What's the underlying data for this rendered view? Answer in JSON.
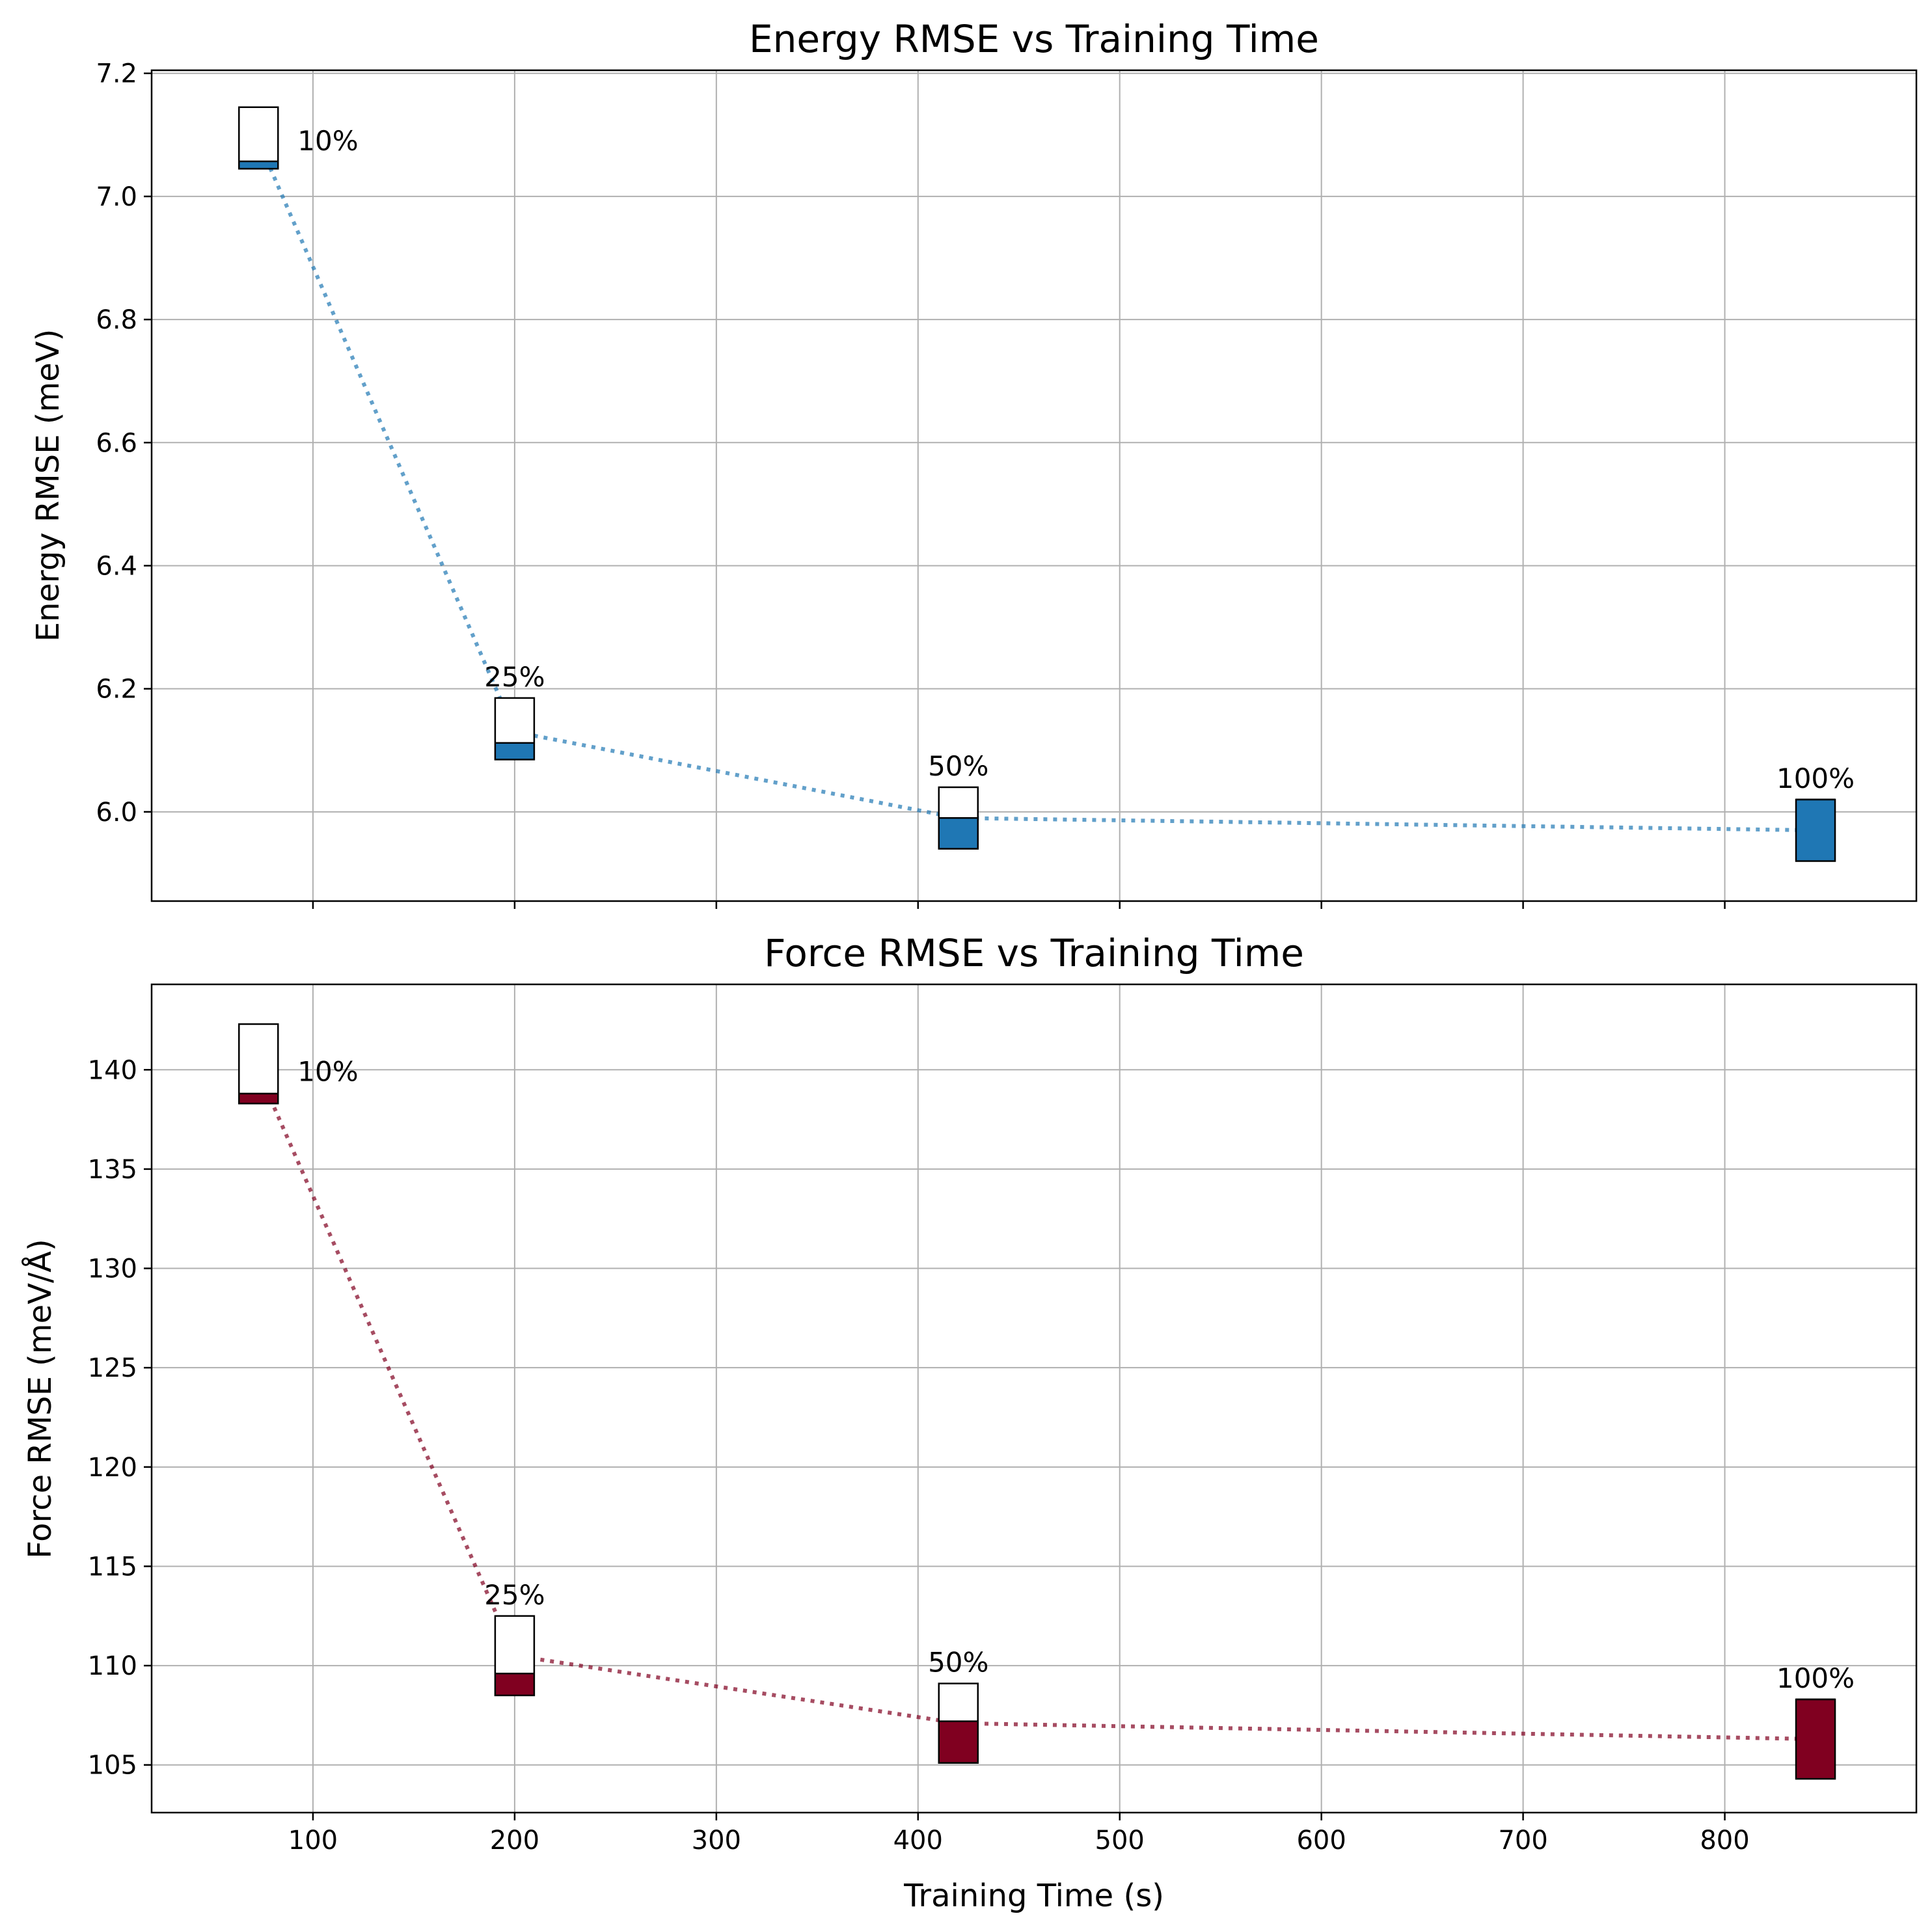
{
  "chart_data": [
    {
      "type": "scatter",
      "title": "Energy RMSE vs Training Time",
      "xlabel": "",
      "ylabel": "Energy RMSE (meV)",
      "xlim": [
        20,
        895
      ],
      "ylim": [
        5.855,
        7.205
      ],
      "xticks": [
        100,
        200,
        300,
        400,
        500,
        600,
        700,
        800
      ],
      "yticks": [
        6.0,
        6.2,
        6.4,
        6.6,
        6.8,
        7.0,
        7.2
      ],
      "ytick_labels": [
        "6.0",
        "6.2",
        "6.4",
        "6.6",
        "6.8",
        "7.0",
        "7.2"
      ],
      "show_xtick_labels": false,
      "grid": true,
      "color": "#1f77b4",
      "line_style": "dotted",
      "points": [
        {
          "x": 73,
          "y": 7.09,
          "label": "10%",
          "box_low": 7.045,
          "box_high": 7.145,
          "fill_top": 7.057,
          "label_pos": "right"
        },
        {
          "x": 200,
          "y": 6.13,
          "label": "25%",
          "box_low": 6.085,
          "box_high": 6.185,
          "fill_top": 6.112,
          "label_pos": "above"
        },
        {
          "x": 420,
          "y": 5.99,
          "label": "50%",
          "box_low": 5.94,
          "box_high": 6.04,
          "fill_top": 5.99,
          "label_pos": "above"
        },
        {
          "x": 845,
          "y": 5.97,
          "label": "100%",
          "box_low": 5.92,
          "box_high": 6.02,
          "fill_top": 6.02,
          "label_pos": "above"
        }
      ]
    },
    {
      "type": "scatter",
      "title": "Force RMSE vs Training Time",
      "xlabel": "Training Time (s)",
      "ylabel": "Force RMSE (meV/Å)",
      "xlim": [
        20,
        895
      ],
      "ylim": [
        102.6,
        144.3
      ],
      "xticks": [
        100,
        200,
        300,
        400,
        500,
        600,
        700,
        800
      ],
      "yticks": [
        105,
        110,
        115,
        120,
        125,
        130,
        135,
        140
      ],
      "ytick_labels": [
        "105",
        "110",
        "115",
        "120",
        "125",
        "130",
        "135",
        "140"
      ],
      "show_xtick_labels": true,
      "grid": true,
      "color": "#800020",
      "line_style": "dotted",
      "points": [
        {
          "x": 73,
          "y": 139.9,
          "label": "10%",
          "box_low": 138.3,
          "box_high": 142.3,
          "fill_top": 138.8,
          "label_pos": "right"
        },
        {
          "x": 200,
          "y": 110.5,
          "label": "25%",
          "box_low": 108.5,
          "box_high": 112.5,
          "fill_top": 109.6,
          "label_pos": "above"
        },
        {
          "x": 420,
          "y": 107.1,
          "label": "50%",
          "box_low": 105.1,
          "box_high": 109.1,
          "fill_top": 107.2,
          "label_pos": "above"
        },
        {
          "x": 845,
          "y": 106.3,
          "label": "100%",
          "box_low": 104.3,
          "box_high": 108.3,
          "fill_top": 108.3,
          "label_pos": "above"
        }
      ]
    }
  ]
}
